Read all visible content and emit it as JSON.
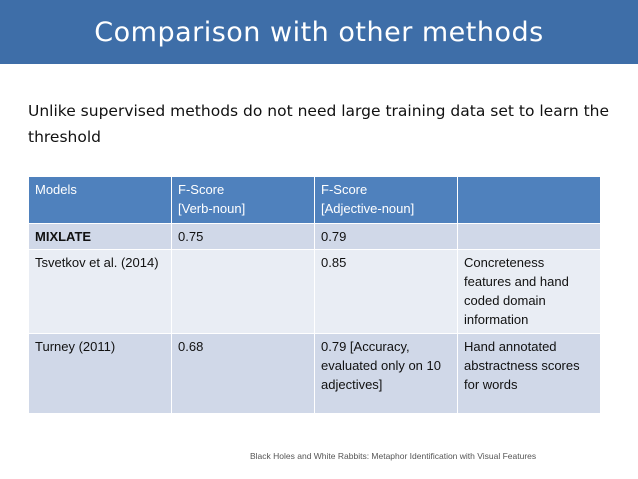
{
  "title": "Comparison with other methods",
  "subtitle": "Unlike supervised methods do not need large training data set to learn the threshold",
  "table": {
    "headers": [
      {
        "line1": "Models",
        "line2": ""
      },
      {
        "line1": "F-Score",
        "line2": "[Verb-noun]"
      },
      {
        "line1": "F-Score",
        "line2": "[Adjective-noun]"
      },
      {
        "line1": "",
        "line2": ""
      }
    ],
    "rows": [
      [
        "MIXLATE",
        "0.75",
        "0.79",
        ""
      ],
      [
        "Tsvetkov et al. (2014)",
        "",
        "0.85",
        "Concreteness features and hand coded domain information"
      ],
      [
        "Turney (2011)",
        "0.68",
        "0.79 [Accuracy, evaluated only on 10 adjectives]",
        "Hand annotated abstractness scores for words"
      ]
    ]
  },
  "footer": "Black Holes and White Rabbits: Metaphor Identification with Visual Features"
}
